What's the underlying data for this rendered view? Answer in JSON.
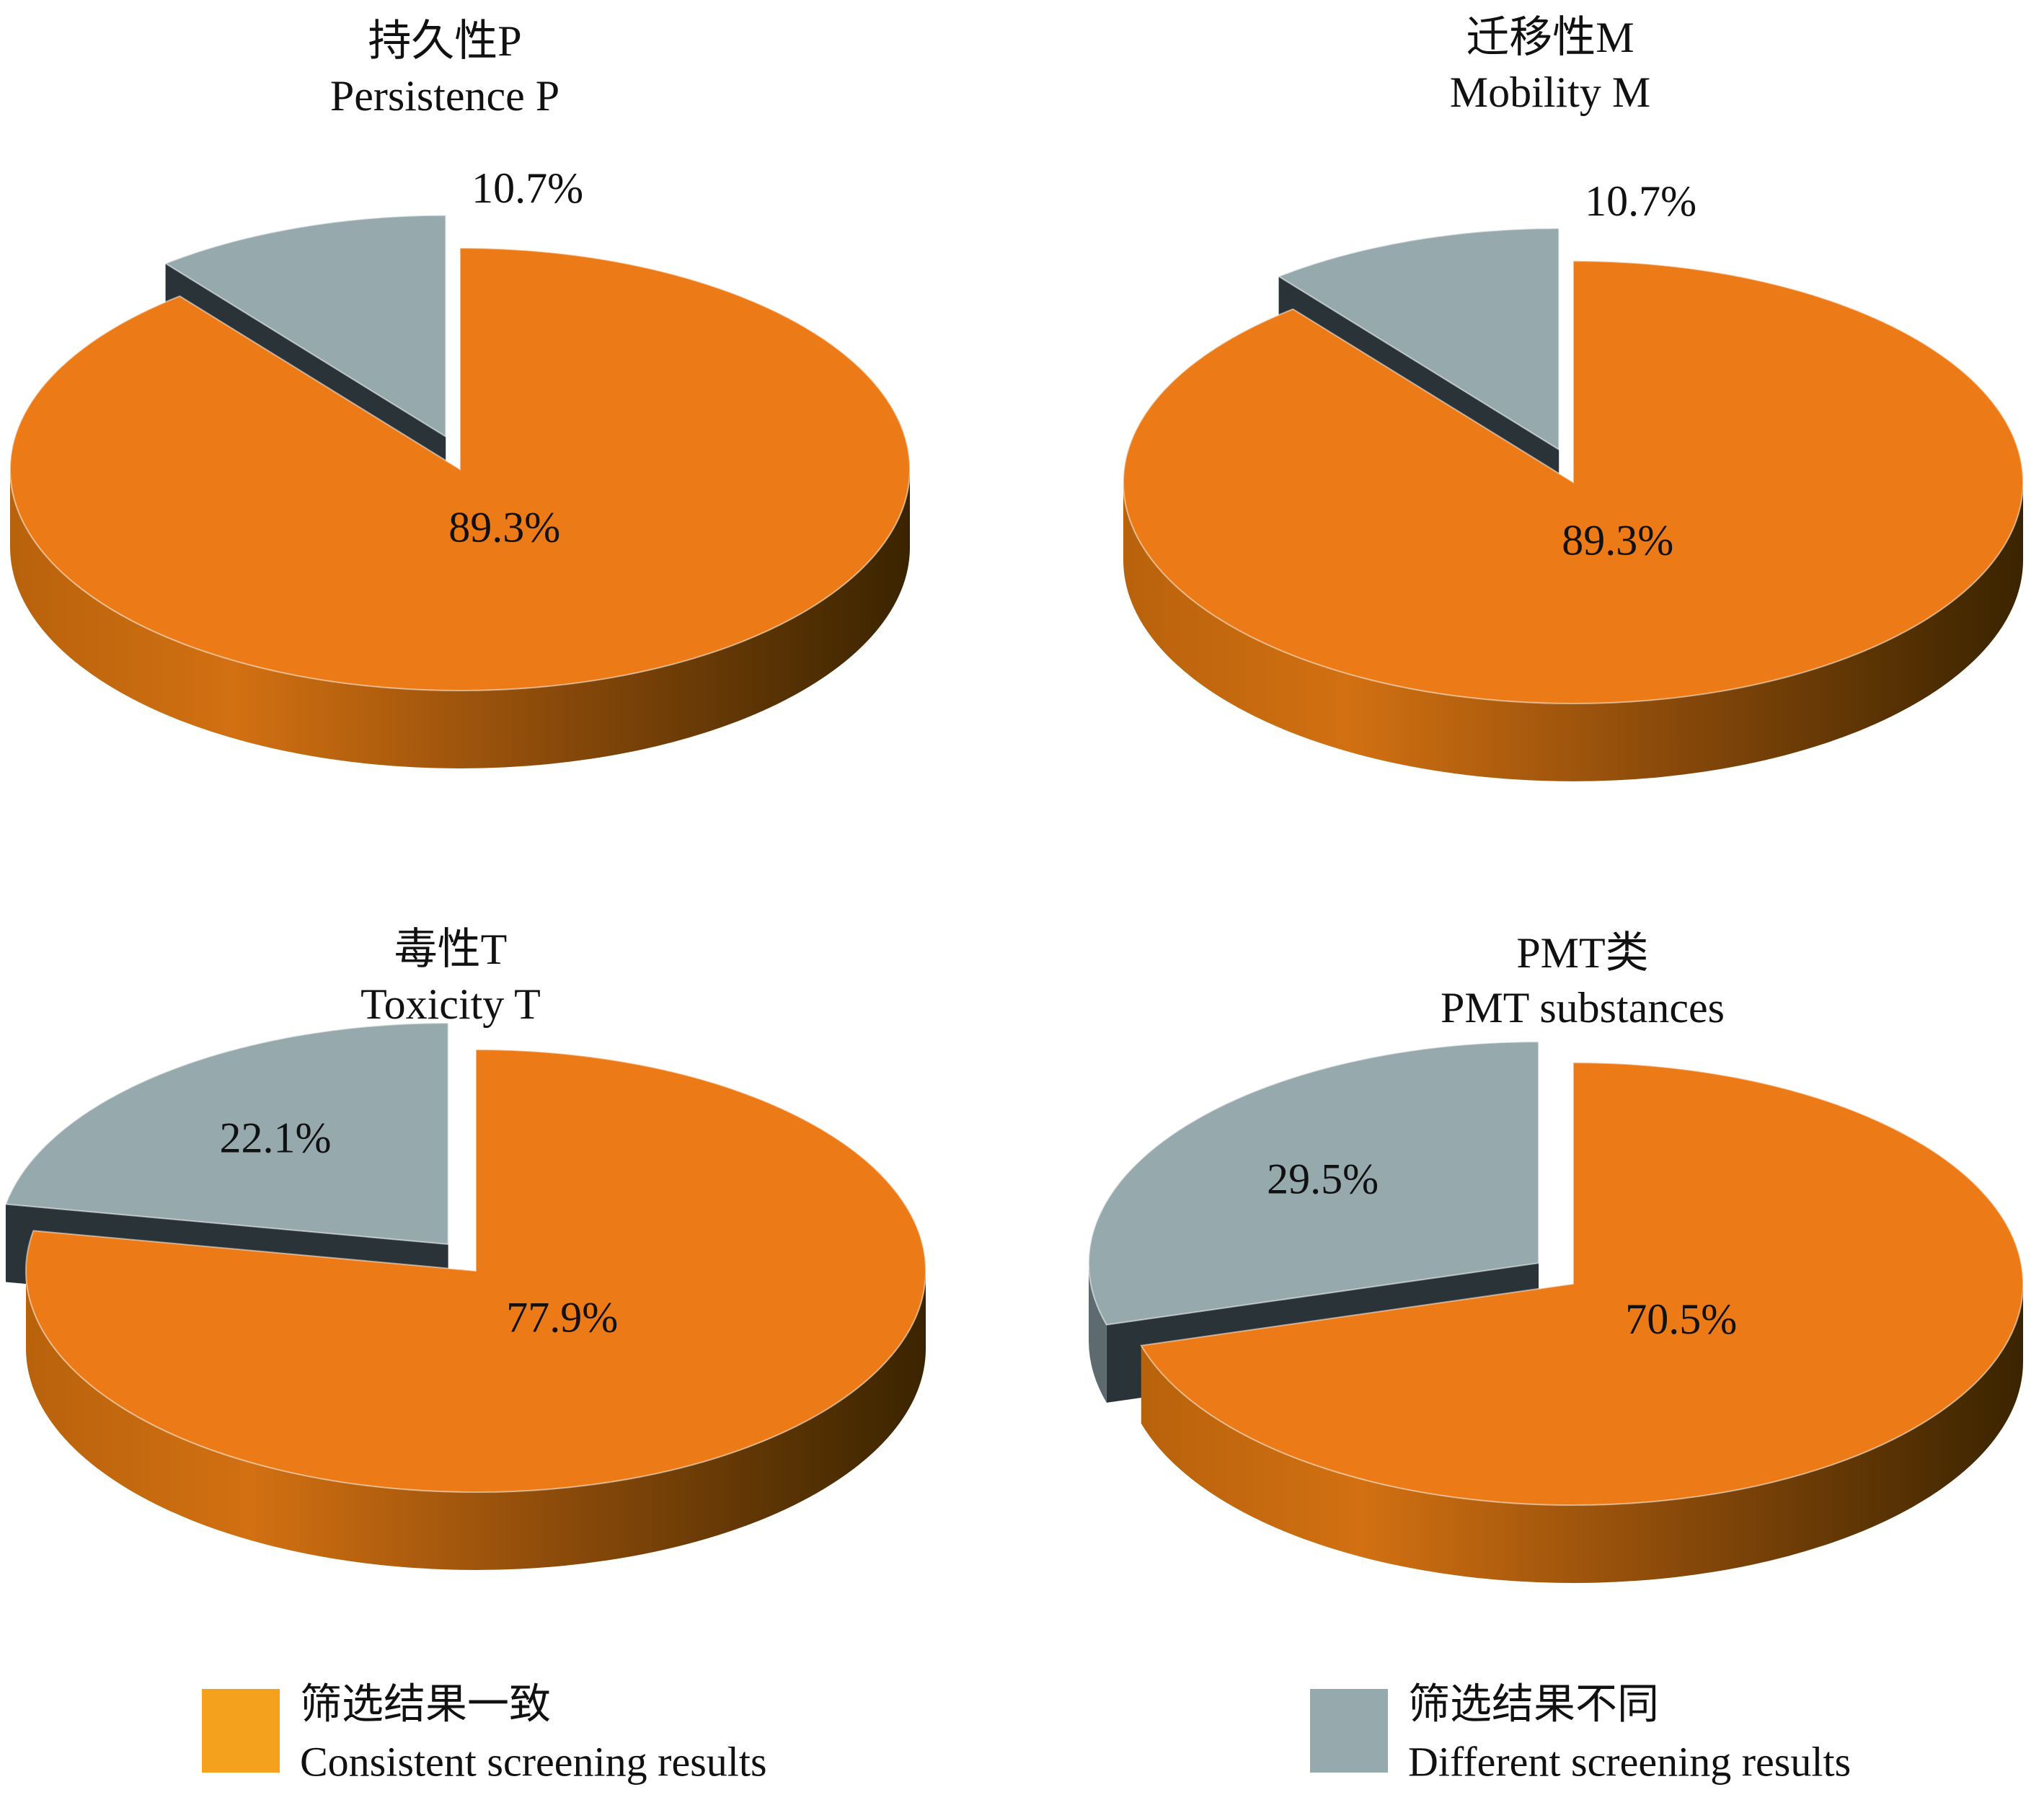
{
  "chart_data": [
    {
      "type": "pie",
      "title": "持久性P",
      "subtitle": "Persistence P",
      "values": [
        89.3,
        10.7
      ],
      "value_labels": [
        "89.3%",
        "10.7%"
      ],
      "colors": [
        "#ec7a16",
        "#96a9ad"
      ]
    },
    {
      "type": "pie",
      "title": "迁移性M",
      "subtitle": "Mobility M",
      "values": [
        89.3,
        10.7
      ],
      "value_labels": [
        "89.3%",
        "10.7%"
      ],
      "colors": [
        "#ec7a16",
        "#96a9ad"
      ]
    },
    {
      "type": "pie",
      "title": "毒性T",
      "subtitle": "Toxicity T",
      "values": [
        77.9,
        22.1
      ],
      "value_labels": [
        "77.9%",
        "22.1%"
      ],
      "colors": [
        "#ec7a16",
        "#96a9ad"
      ]
    },
    {
      "type": "pie",
      "title": "PMT类",
      "subtitle": "PMT substances",
      "values": [
        70.5,
        29.5
      ],
      "value_labels": [
        "70.5%",
        "29.5%"
      ],
      "colors": [
        "#ec7a16",
        "#96a9ad"
      ]
    }
  ],
  "legend": {
    "items": [
      {
        "label": "筛选结果一致",
        "sublabel": "Consistent screening results",
        "color": "#f4a21e"
      },
      {
        "label": "筛选结果不同",
        "sublabel": "Different screening results",
        "color": "#96a9ad"
      }
    ]
  }
}
